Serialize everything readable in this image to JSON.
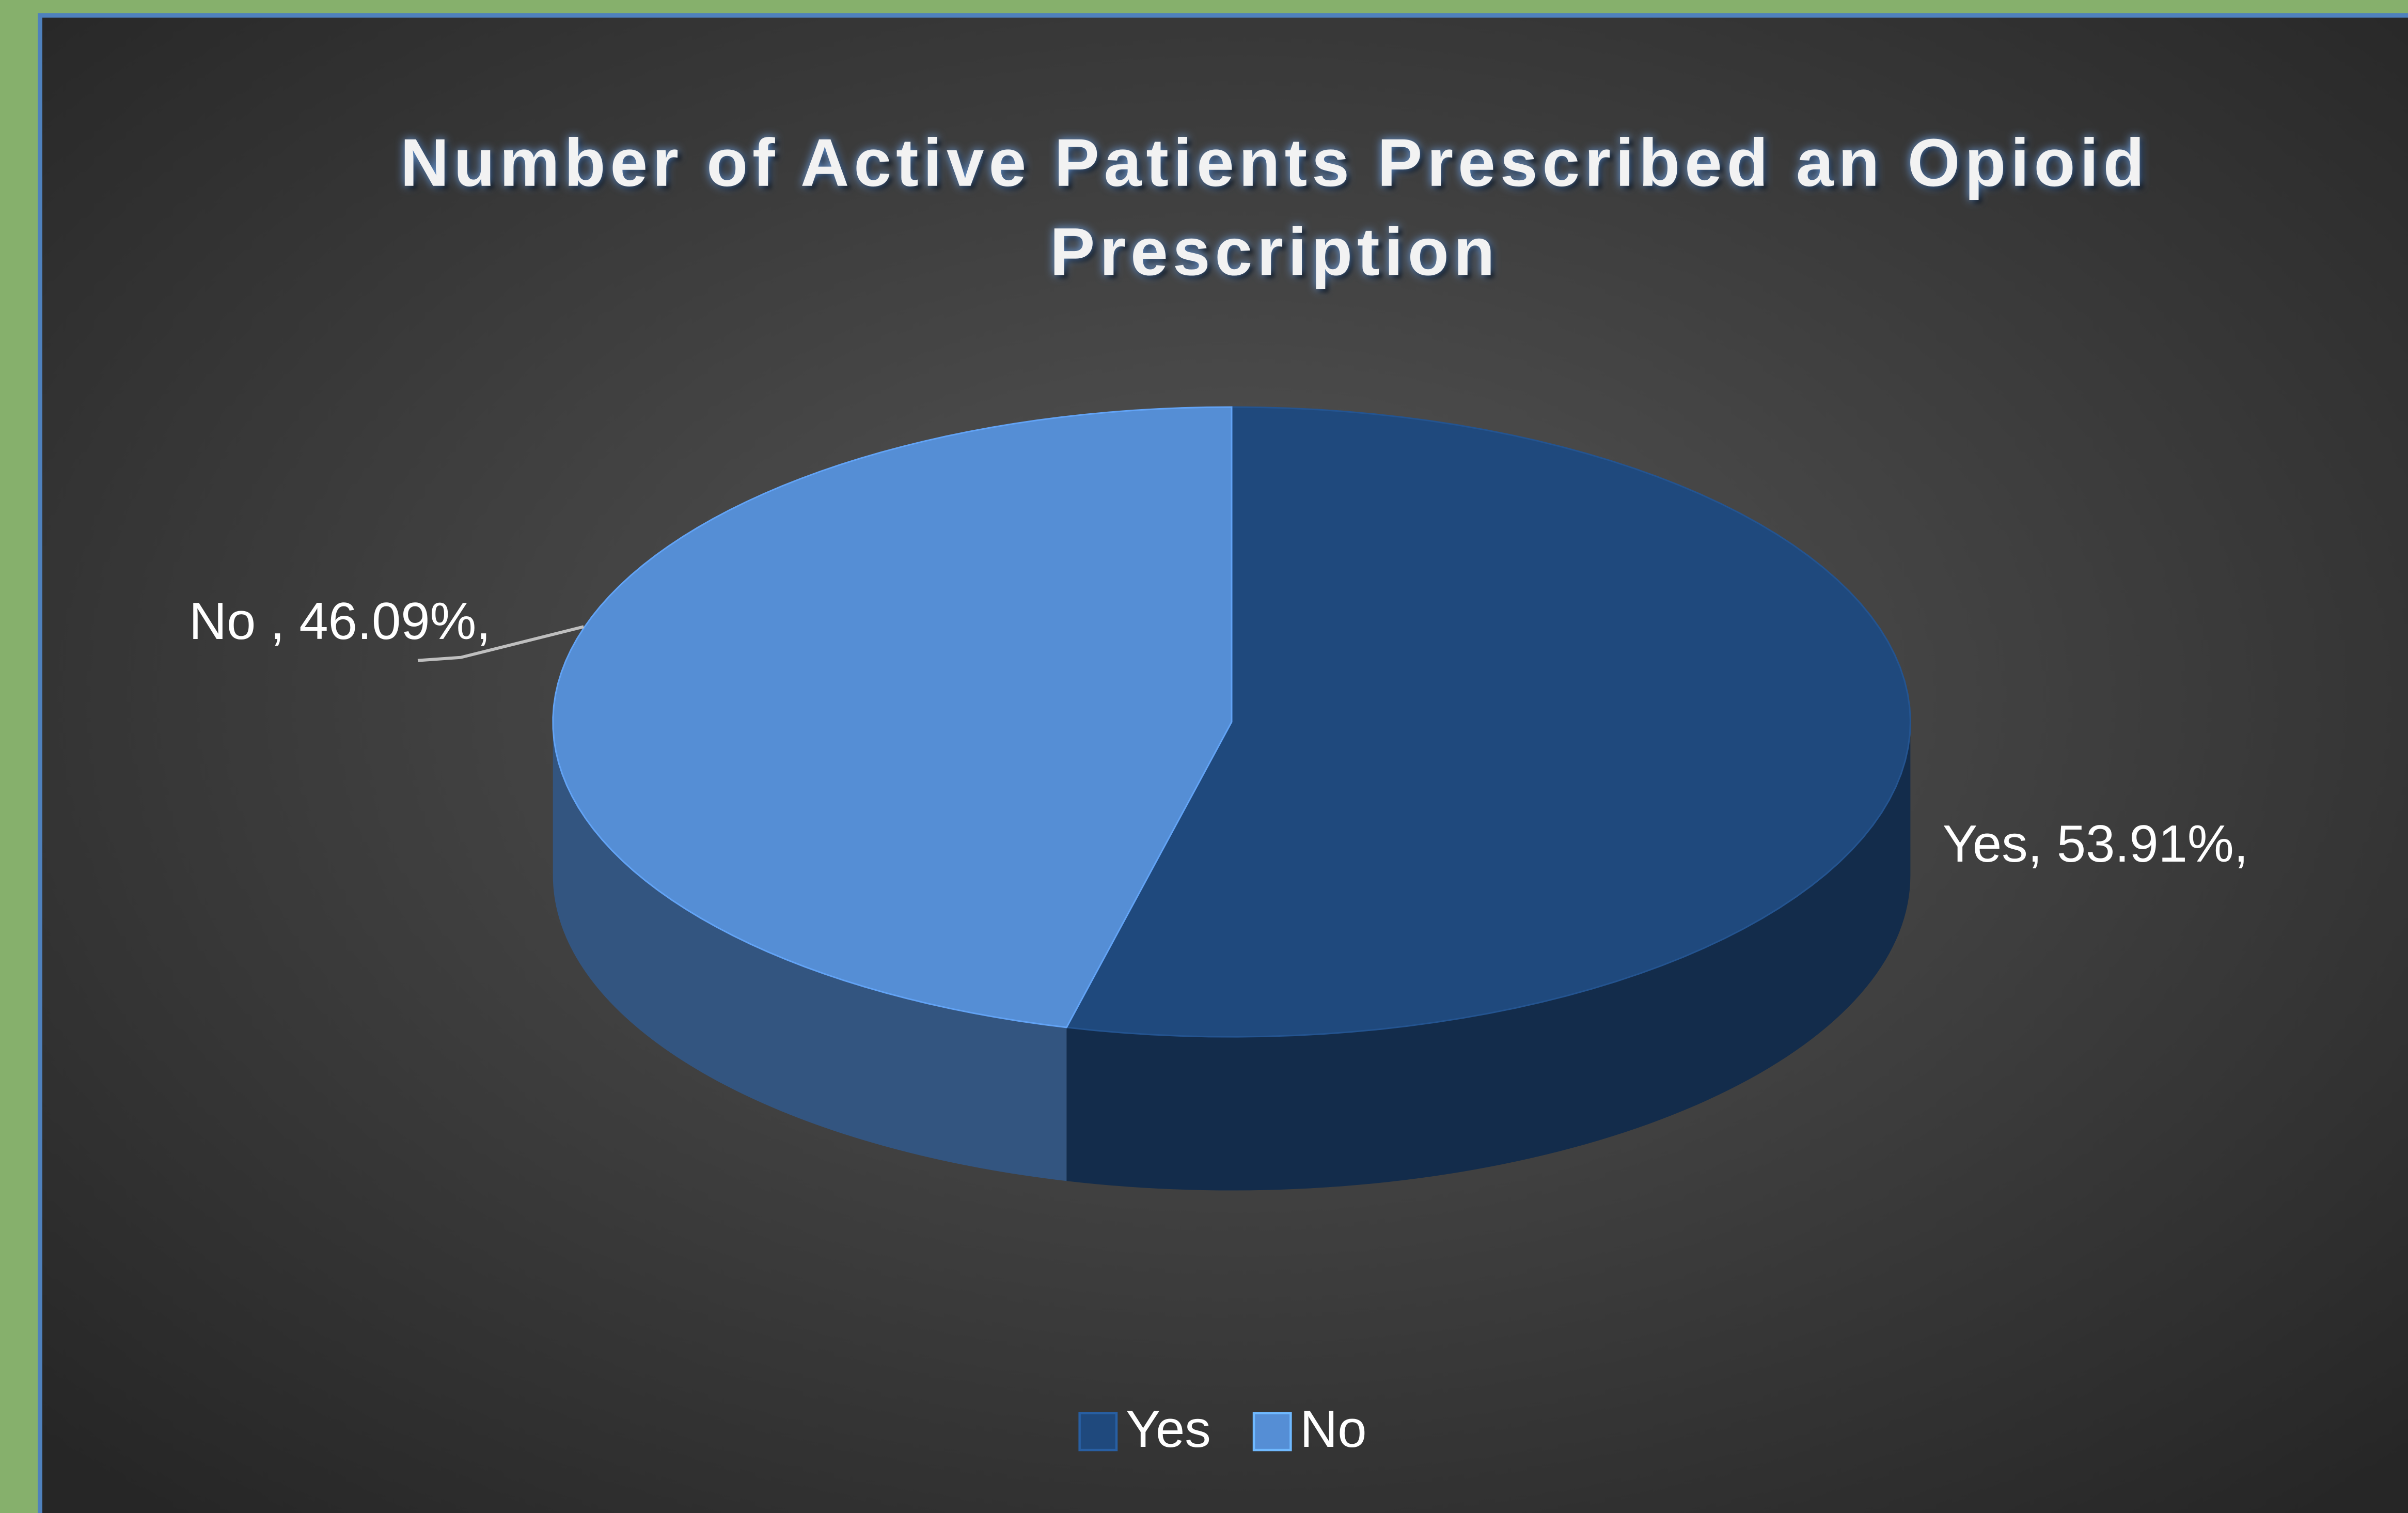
{
  "chart_data": {
    "type": "pie",
    "title": "Number of Active Patients Prescribed an Opioid Prescription",
    "categories": [
      "Yes",
      "No"
    ],
    "values": [
      53.91,
      46.09
    ],
    "value_labels": [
      "Yes, 53.91%,",
      "No , 46.09%,"
    ],
    "colors": [
      "#1f497d",
      "#558ed5"
    ],
    "legend": "bottom"
  }
}
